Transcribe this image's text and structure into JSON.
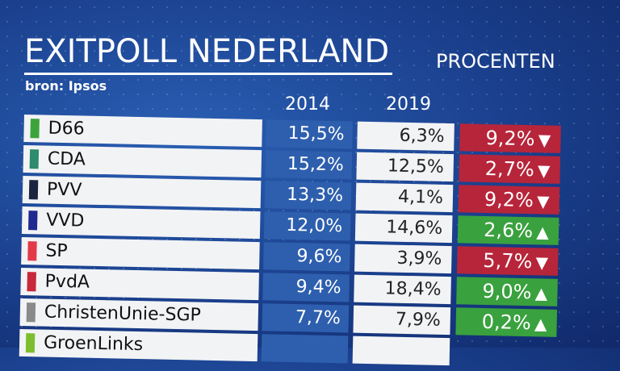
{
  "header": {
    "title": "EXITPOLL NEDERLAND",
    "source": "bron: Ipsos",
    "unit_label": "PROCENTEN",
    "year_1": "2014",
    "year_2": "2019"
  },
  "colors": {
    "background": "#1f4b9c",
    "row_bg": "#f2f3f5",
    "col2014_bg": "#2e5fae",
    "loss": "#b7253a",
    "gain": "#3aa13f"
  },
  "rows": [
    {
      "party": "D66",
      "swatch": "#3da43b",
      "v2014": "15,5%",
      "v2019": "6,3%",
      "change": "9,2%",
      "direction": "down"
    },
    {
      "party": "CDA",
      "swatch": "#2e8b6c",
      "v2014": "15,2%",
      "v2019": "12,5%",
      "change": "2,7%",
      "direction": "down"
    },
    {
      "party": "PVV",
      "swatch": "#1c2540",
      "v2014": "13,3%",
      "v2019": "4,1%",
      "change": "9,2%",
      "direction": "down"
    },
    {
      "party": "VVD",
      "swatch": "#1f2a8f",
      "v2014": "12,0%",
      "v2019": "14,6%",
      "change": "2,6%",
      "direction": "up"
    },
    {
      "party": "SP",
      "swatch": "#e33a48",
      "v2014": "9,6%",
      "v2019": "3,9%",
      "change": "5,7%",
      "direction": "down"
    },
    {
      "party": "PvdA",
      "swatch": "#c8283c",
      "v2014": "9,4%",
      "v2019": "18,4%",
      "change": "9,0%",
      "direction": "up"
    },
    {
      "party": "ChristenUnie-SGP",
      "swatch": "#8a8a8a",
      "v2014": "7,7%",
      "v2019": "7,9%",
      "change": "0,2%",
      "direction": "up"
    },
    {
      "party": "GroenLinks",
      "swatch": "#7cbe2e",
      "v2014": "",
      "v2019": "",
      "change": "",
      "direction": "up"
    }
  ]
}
